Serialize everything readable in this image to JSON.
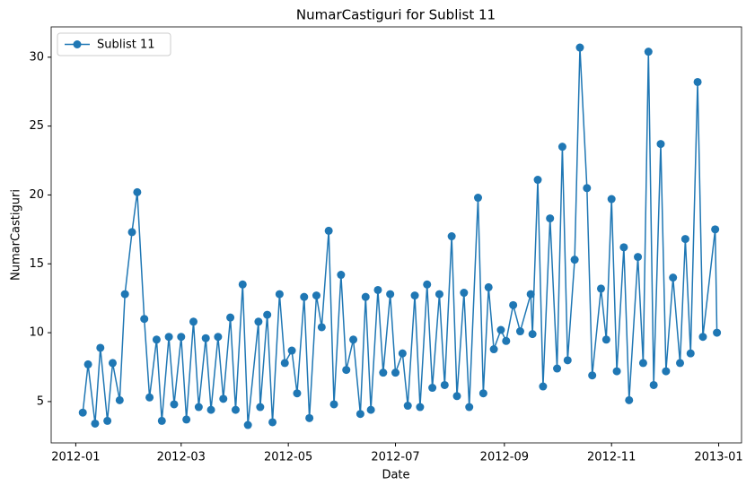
{
  "chart_data": {
    "type": "line",
    "title": "NumarCastiguri for Sublist 11",
    "xlabel": "Date",
    "ylabel": "NumarCastiguri",
    "legend": "upper left",
    "x": [
      4,
      7,
      11,
      14,
      18,
      21,
      25,
      28,
      32,
      35,
      39,
      42,
      46,
      49,
      53,
      56,
      60,
      63,
      67,
      70,
      74,
      77,
      81,
      84,
      88,
      91,
      95,
      98,
      104,
      105,
      109,
      112,
      116,
      119,
      123,
      126,
      130,
      133,
      137,
      140,
      144,
      147,
      151,
      154,
      158,
      162,
      165,
      168,
      172,
      175,
      179,
      182,
      186,
      189,
      193,
      196,
      200,
      203,
      207,
      210,
      214,
      217,
      221,
      224,
      229,
      232,
      235,
      238,
      242,
      245,
      249,
      253,
      259,
      260,
      263,
      266,
      270,
      274,
      277,
      280,
      284,
      287,
      291,
      294,
      299,
      302,
      305,
      308,
      312,
      315,
      320,
      323,
      326,
      329,
      333,
      336,
      340,
      344,
      347,
      350,
      354,
      357,
      364,
      365
    ],
    "series": [
      {
        "name": "Sublist 11",
        "color": "#1f77b4",
        "values": [
          4.2,
          7.7,
          3.4,
          8.9,
          3.6,
          7.8,
          5.1,
          12.8,
          17.3,
          20.2,
          11.0,
          5.3,
          9.5,
          3.6,
          9.7,
          4.8,
          9.7,
          3.7,
          10.8,
          4.6,
          9.6,
          4.4,
          9.7,
          5.2,
          11.1,
          4.4,
          13.5,
          3.3,
          10.8,
          4.6,
          11.3,
          3.5,
          12.8,
          7.8,
          8.7,
          5.6,
          12.6,
          3.8,
          12.7,
          10.4,
          17.4,
          4.8,
          14.2,
          7.3,
          9.5,
          4.1,
          12.6,
          4.4,
          13.1,
          7.1,
          12.8,
          7.1,
          8.5,
          4.7,
          12.7,
          4.6,
          13.5,
          6.0,
          12.8,
          6.2,
          17.0,
          5.4,
          12.9,
          4.6,
          19.8,
          5.6,
          13.3,
          8.8,
          10.2,
          9.4,
          12.0,
          10.1,
          12.8,
          9.9,
          21.1,
          6.1,
          18.3,
          7.4,
          23.5,
          8.0,
          15.3,
          30.7,
          20.5,
          6.9,
          13.2,
          9.5,
          19.7,
          7.2,
          16.2,
          5.1,
          15.5,
          7.8,
          30.4,
          6.2,
          23.7,
          7.2,
          14.0,
          7.8,
          16.8,
          8.5,
          28.2,
          9.7,
          17.5,
          10.0
        ]
      }
    ],
    "xlim": [
      -14,
      379
    ],
    "xticks": [
      {
        "value": 0,
        "label": "2012-01"
      },
      {
        "value": 60,
        "label": "2012-03"
      },
      {
        "value": 121,
        "label": "2012-05"
      },
      {
        "value": 182,
        "label": "2012-07"
      },
      {
        "value": 244,
        "label": "2012-09"
      },
      {
        "value": 305,
        "label": "2012-11"
      },
      {
        "value": 366,
        "label": "2013-01"
      }
    ],
    "ylim": [
      2,
      32.2
    ],
    "yticks": [
      5,
      10,
      15,
      20,
      25,
      30
    ],
    "grid": false
  }
}
